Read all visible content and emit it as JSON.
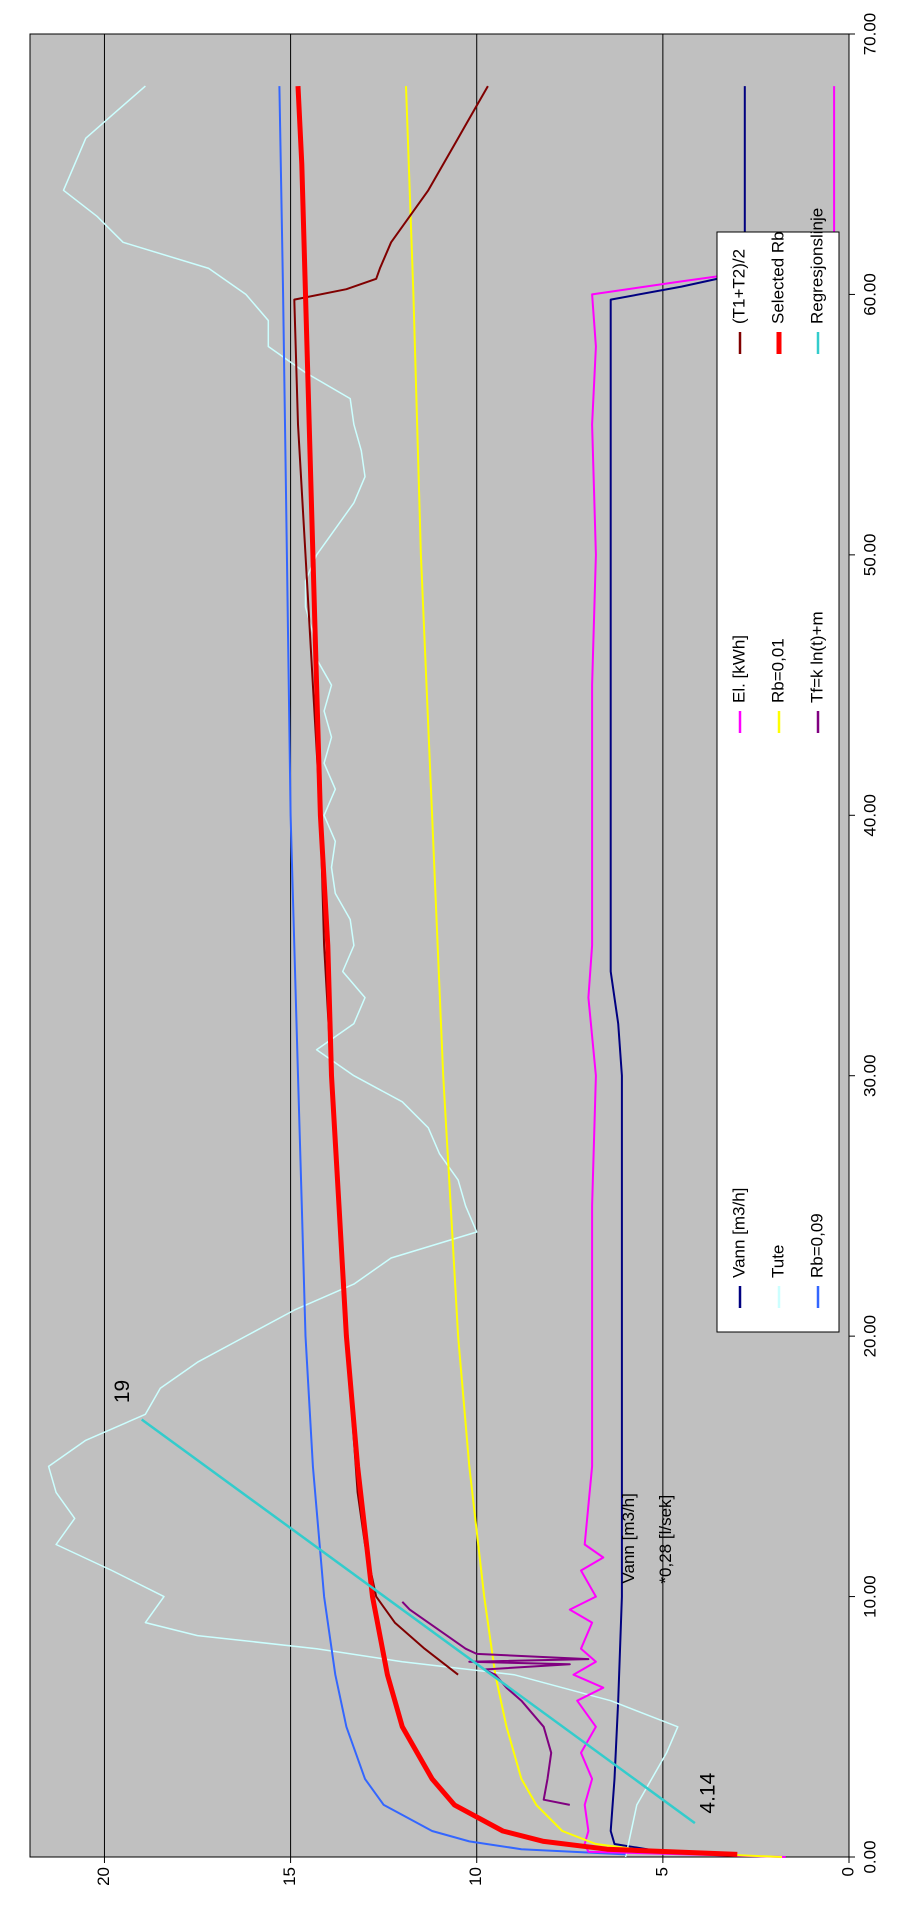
{
  "chart_data": {
    "type": "line",
    "xlim": [
      0,
      70
    ],
    "xticks": [
      {
        "value": 0,
        "label": "0.00"
      },
      {
        "value": 10,
        "label": "10.00"
      },
      {
        "value": 20,
        "label": "20.00"
      },
      {
        "value": 30,
        "label": "30.00"
      },
      {
        "value": 40,
        "label": "40.00"
      },
      {
        "value": 50,
        "label": "50.00"
      },
      {
        "value": 60,
        "label": "60.00"
      },
      {
        "value": 70,
        "label": "70.00"
      }
    ],
    "ylim": [
      0,
      22
    ],
    "yticks": [
      0,
      5,
      10,
      15,
      20
    ],
    "grid": true,
    "annotations": [
      "Vann [m3/h]",
      "*0,28 [l/sek]"
    ],
    "series": [
      {
        "name": "Vann [m3/h]",
        "color": "#000080",
        "linewidth": 2,
        "x": [
          0.2,
          0.5,
          1,
          3,
          6,
          10,
          20,
          30,
          32,
          34,
          40,
          50,
          59.8,
          60.3,
          60.8,
          62,
          68
        ],
        "values": [
          5.0,
          6.3,
          6.4,
          6.3,
          6.2,
          6.1,
          6.1,
          6.1,
          6.2,
          6.4,
          6.4,
          6.4,
          6.4,
          4.5,
          2.9,
          2.8,
          2.8
        ]
      },
      {
        "name": "Tute",
        "color": "#ccffff",
        "linewidth": 1.5,
        "x": [
          0,
          2,
          4,
          5,
          6,
          7,
          7.5,
          8,
          8.5,
          9,
          10,
          11,
          12,
          13,
          14,
          15,
          16,
          17,
          18,
          19,
          20,
          21,
          22,
          23,
          24,
          25,
          26,
          27,
          28,
          29,
          30,
          31,
          32,
          33,
          34,
          35,
          36,
          37,
          38,
          39,
          40,
          41,
          42,
          43,
          44,
          45,
          46,
          47,
          48,
          49,
          50,
          51,
          52,
          53,
          54,
          55,
          56,
          57,
          58,
          59,
          60,
          61,
          62,
          63,
          64,
          65,
          66,
          67,
          68
        ],
        "values": [
          6.0,
          5.7,
          4.9,
          4.6,
          6.4,
          9.0,
          12.0,
          14.3,
          17.5,
          18.9,
          18.4,
          19.8,
          21.3,
          20.8,
          21.3,
          21.5,
          20.5,
          18.9,
          18.5,
          17.5,
          16.2,
          14.9,
          13.3,
          12.3,
          10.0,
          10.3,
          10.5,
          11.0,
          11.3,
          12.0,
          13.3,
          14.3,
          13.3,
          13.0,
          13.6,
          13.3,
          13.4,
          13.8,
          13.9,
          13.8,
          14.1,
          13.8,
          14.1,
          13.9,
          14.1,
          13.9,
          14.3,
          14.4,
          14.6,
          14.6,
          14.3,
          13.8,
          13.3,
          13.0,
          13.1,
          13.3,
          13.4,
          14.6,
          15.6,
          15.6,
          16.2,
          17.2,
          19.5,
          20.2,
          21.1,
          20.8,
          20.5,
          19.7,
          18.9
        ]
      },
      {
        "name": "Rb=0,09",
        "color": "#3366ff",
        "linewidth": 2,
        "x": [
          0.1,
          0.3,
          0.6,
          1,
          2,
          3,
          5,
          7,
          10,
          15,
          20,
          25,
          30,
          40,
          50,
          60,
          68
        ],
        "values": [
          6.0,
          8.8,
          10.2,
          11.2,
          12.5,
          13.0,
          13.5,
          13.8,
          14.1,
          14.4,
          14.6,
          14.7,
          14.8,
          15.0,
          15.1,
          15.2,
          15.3
        ]
      },
      {
        "name": "El. [kWh]",
        "color": "#ff00ff",
        "linewidth": 2,
        "x": [
          0,
          0.2,
          0.5,
          1,
          2,
          3,
          4,
          5,
          6,
          6.5,
          7,
          7.5,
          8,
          9,
          9.5,
          10,
          11,
          11.5,
          12,
          15,
          20,
          25,
          30,
          33,
          35,
          40,
          45,
          50,
          55,
          58,
          60,
          60.5,
          61,
          62,
          68
        ],
        "values": [
          1.7,
          7.0,
          7.1,
          7.0,
          7.1,
          6.9,
          7.2,
          6.8,
          7.3,
          6.6,
          7.4,
          6.8,
          7.2,
          6.9,
          7.5,
          6.8,
          7.2,
          6.6,
          7.1,
          6.9,
          6.9,
          6.9,
          6.8,
          7.0,
          6.9,
          6.9,
          6.9,
          6.8,
          6.9,
          6.8,
          6.9,
          4.5,
          2.0,
          0.4,
          0.4
        ]
      },
      {
        "name": "Rb=0,01",
        "color": "#ffff00",
        "linewidth": 2,
        "x": [
          0,
          0.2,
          0.5,
          1,
          2,
          3,
          5,
          7,
          10,
          15,
          20,
          25,
          30,
          40,
          50,
          60,
          68
        ],
        "values": [
          1.8,
          5.2,
          6.8,
          7.7,
          8.4,
          8.8,
          9.2,
          9.5,
          9.8,
          10.2,
          10.5,
          10.7,
          10.9,
          11.2,
          11.5,
          11.7,
          11.9
        ]
      },
      {
        "name": "Tf=k ln(t)+m",
        "color": "#800080",
        "linewidth": 2,
        "x": [
          2,
          2.2,
          3,
          4,
          5,
          5.5,
          6,
          6.5,
          7,
          7.2,
          7.4,
          7.5,
          7.6,
          7.8,
          8,
          8.5,
          9,
          9.5,
          9.8
        ],
        "values": [
          7.5,
          8.2,
          8.1,
          8.0,
          8.2,
          8.5,
          8.8,
          9.2,
          9.5,
          9.8,
          7.5,
          10.2,
          7.0,
          10.0,
          10.3,
          10.8,
          11.3,
          11.8,
          12.0
        ]
      },
      {
        "name": "(T1+T2)/2",
        "color": "#800000",
        "linewidth": 2,
        "x": [
          7,
          8,
          9,
          10,
          12,
          14,
          16,
          20,
          25,
          30,
          35,
          40,
          45,
          50,
          55,
          59.8,
          60.2,
          60.6,
          61,
          62,
          63,
          64,
          65,
          66,
          67,
          68
        ],
        "values": [
          10.5,
          11.4,
          12.2,
          12.7,
          13.0,
          13.2,
          13.3,
          13.5,
          13.7,
          13.9,
          14.1,
          14.2,
          14.4,
          14.6,
          14.8,
          14.9,
          13.5,
          12.7,
          12.6,
          12.3,
          11.8,
          11.3,
          10.9,
          10.5,
          10.1,
          9.7
        ]
      },
      {
        "name": "Selected Rb",
        "color": "#ff0000",
        "linewidth": 5,
        "x": [
          0.1,
          0.3,
          0.6,
          1,
          2,
          3,
          5,
          7,
          10,
          15,
          20,
          25,
          30,
          35,
          40,
          45,
          50,
          55,
          60,
          65,
          68
        ],
        "values": [
          3.0,
          6.5,
          8.2,
          9.3,
          10.6,
          11.2,
          12.0,
          12.4,
          12.8,
          13.2,
          13.5,
          13.7,
          13.9,
          14.0,
          14.2,
          14.3,
          14.4,
          14.5,
          14.6,
          14.7,
          14.8
        ]
      },
      {
        "name": "Regresjonslinje",
        "color": "#33cccc",
        "linewidth": 2.5,
        "data_labels": true,
        "x": [
          1.3,
          16.8
        ],
        "values": [
          4.14,
          19
        ]
      }
    ]
  }
}
